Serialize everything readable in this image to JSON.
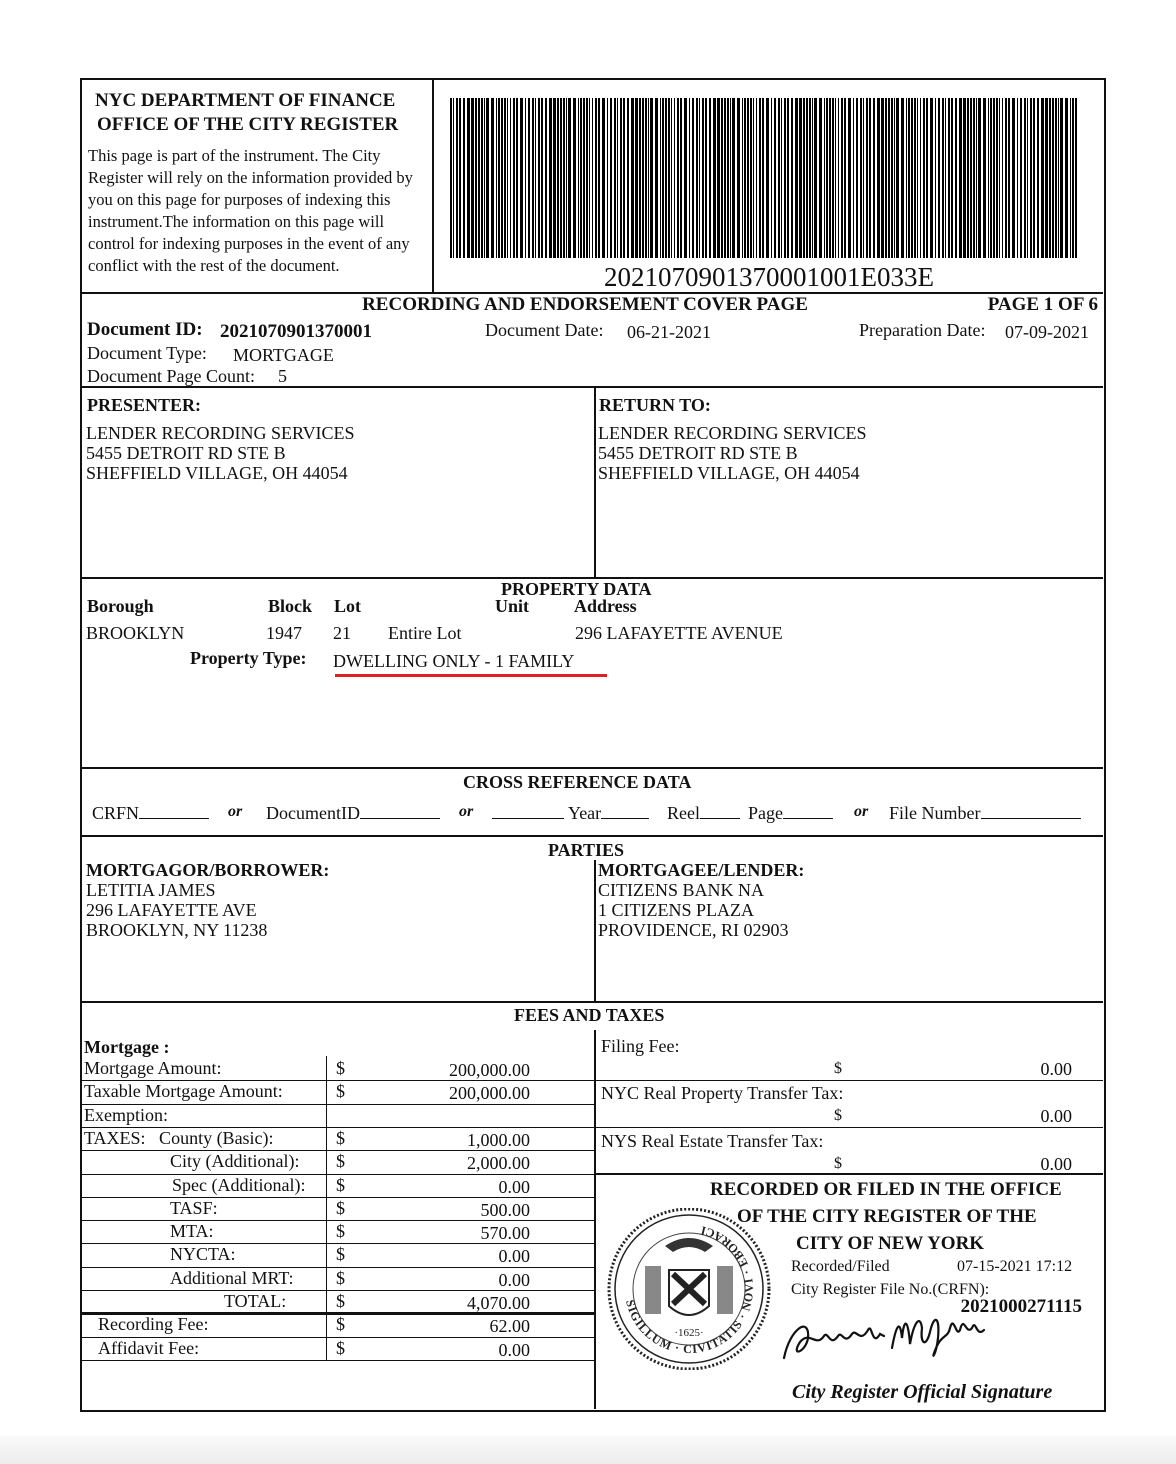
{
  "header": {
    "dept_line1": "NYC DEPARTMENT OF FINANCE",
    "dept_line2": "OFFICE OF THE CITY REGISTER",
    "notice": "This page is part of the instrument. The City Register will rely on the information provided by you on this page for purposes of indexing this instrument.The information on this page will control for indexing purposes in the event of any conflict with the rest of the document.",
    "barcode_number": "2021070901370001001E033E"
  },
  "cover": {
    "title": "RECORDING AND ENDORSEMENT COVER PAGE",
    "page": "PAGE 1 OF 6",
    "document_id_label": "Document ID:",
    "document_id": "2021070901370001",
    "document_date_label": "Document Date:",
    "document_date": "06-21-2021",
    "preparation_date_label": "Preparation Date:",
    "preparation_date": "07-09-2021",
    "document_type_label": "Document Type:",
    "document_type": "MORTGAGE",
    "page_count_label": "Document Page Count:",
    "page_count": "5"
  },
  "presenter": {
    "label": "PRESENTER:",
    "lines": [
      "LENDER RECORDING SERVICES",
      "5455 DETROIT RD STE B",
      "SHEFFIELD VILLAGE, OH 44054"
    ]
  },
  "return_to": {
    "label": "RETURN TO:",
    "lines": [
      "LENDER RECORDING SERVICES",
      "5455 DETROIT RD STE B",
      "SHEFFIELD VILLAGE, OH 44054"
    ]
  },
  "property": {
    "title": "PROPERTY DATA",
    "headers": {
      "borough": "Borough",
      "block": "Block",
      "lot": "Lot",
      "unit": "Unit",
      "address": "Address"
    },
    "borough": "BROOKLYN",
    "block": "1947",
    "lot": "21",
    "lot_desc": "Entire Lot",
    "address": "296 LAFAYETTE AVENUE",
    "type_label": "Property Type:",
    "type": "DWELLING ONLY - 1 FAMILY",
    "highlight_color": "#e02020"
  },
  "cross_reference": {
    "title": "CROSS REFERENCE DATA",
    "crfn": "CRFN",
    "or": "or",
    "document_id": "DocumentID",
    "year": "Year",
    "reel": "Reel",
    "page": "Page",
    "file_number": "File Number"
  },
  "parties": {
    "title": "PARTIES",
    "borrower_label": "MORTGAGOR/BORROWER:",
    "borrower": [
      "LETITIA JAMES",
      "296 LAFAYETTE AVE",
      "BROOKLYN, NY 11238"
    ],
    "lender_label": "MORTGAGEE/LENDER:",
    "lender": [
      "CITIZENS BANK NA",
      "1 CITIZENS PLAZA",
      "PROVIDENCE, RI 02903"
    ]
  },
  "fees": {
    "title": "FEES AND TAXES",
    "mortgage_label": "Mortgage :",
    "currency": "$",
    "rows": [
      {
        "label": "Mortgage Amount:",
        "amount": "200,000.00"
      },
      {
        "label": "Taxable Mortgage Amount:",
        "amount": "200,000.00"
      },
      {
        "label": "Exemption:",
        "amount": ""
      },
      {
        "label": "TAXES:   County (Basic):",
        "amount": "1,000.00"
      },
      {
        "label": "City (Additional):",
        "amount": "2,000.00"
      },
      {
        "label": "Spec (Additional):",
        "amount": "0.00"
      },
      {
        "label": "TASF:",
        "amount": "500.00"
      },
      {
        "label": "MTA:",
        "amount": "570.00"
      },
      {
        "label": "NYCTA:",
        "amount": "0.00"
      },
      {
        "label": "Additional MRT:",
        "amount": "0.00"
      },
      {
        "label": "TOTAL:",
        "amount": "4,070.00"
      },
      {
        "label": "Recording Fee:",
        "amount": "62.00"
      },
      {
        "label": "Affidavit Fee:",
        "amount": "0.00"
      }
    ],
    "right": [
      {
        "label": "Filing Fee:",
        "amount": "0.00"
      },
      {
        "label": "NYC Real Property Transfer Tax:",
        "amount": "0.00"
      },
      {
        "label": "NYS Real Estate Transfer Tax:",
        "amount": "0.00"
      }
    ]
  },
  "recorded": {
    "line1": "RECORDED OR FILED IN THE OFFICE",
    "line2": "OF THE CITY REGISTER OF THE",
    "line3": "CITY OF NEW YORK",
    "filed_label": "Recorded/Filed",
    "filed_datetime": "07-15-2021 17:12",
    "crfn_label": "City Register File No.(CRFN):",
    "crfn": "2021000271115",
    "signature_caption": "City Register Official Signature",
    "signature_name": "Annette M Hill",
    "seal_text": "SIGILLUM CIVITATIS NOVI EBORACI",
    "seal_year": "1625"
  }
}
